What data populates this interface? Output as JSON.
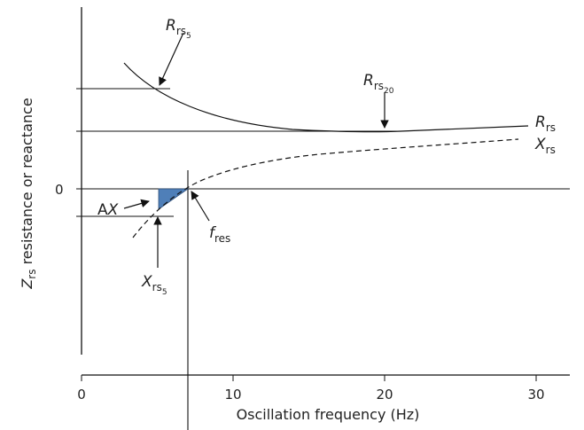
{
  "figure": {
    "x_axis_title": "Oscillation frequency (Hz)",
    "y_axis_title_main": "Z",
    "y_axis_title_sub": "rs",
    "y_axis_title_rest": " resistance or reactance",
    "zero_label": "0",
    "x_ticks": [
      "0",
      "10",
      "20",
      "30"
    ],
    "labels": {
      "rrs5_main": "R",
      "rrs5_sub": "rs",
      "rrs5_sub2": "5",
      "rrs20_main": "R",
      "rrs20_sub": "rs",
      "rrs20_sub2": "20",
      "rrs_main": "R",
      "rrs_sub": "rs",
      "xrs_main": "X",
      "xrs_sub": "rs",
      "ax_prefix": "A",
      "ax_main": "X",
      "fres_main": "f",
      "fres_sub": "res",
      "xrs5_main": "X",
      "xrs5_sub": "rs",
      "xrs5_sub2": "5"
    },
    "colors": {
      "area_fill": "#4f7fb8",
      "line": "#111111"
    }
  }
}
